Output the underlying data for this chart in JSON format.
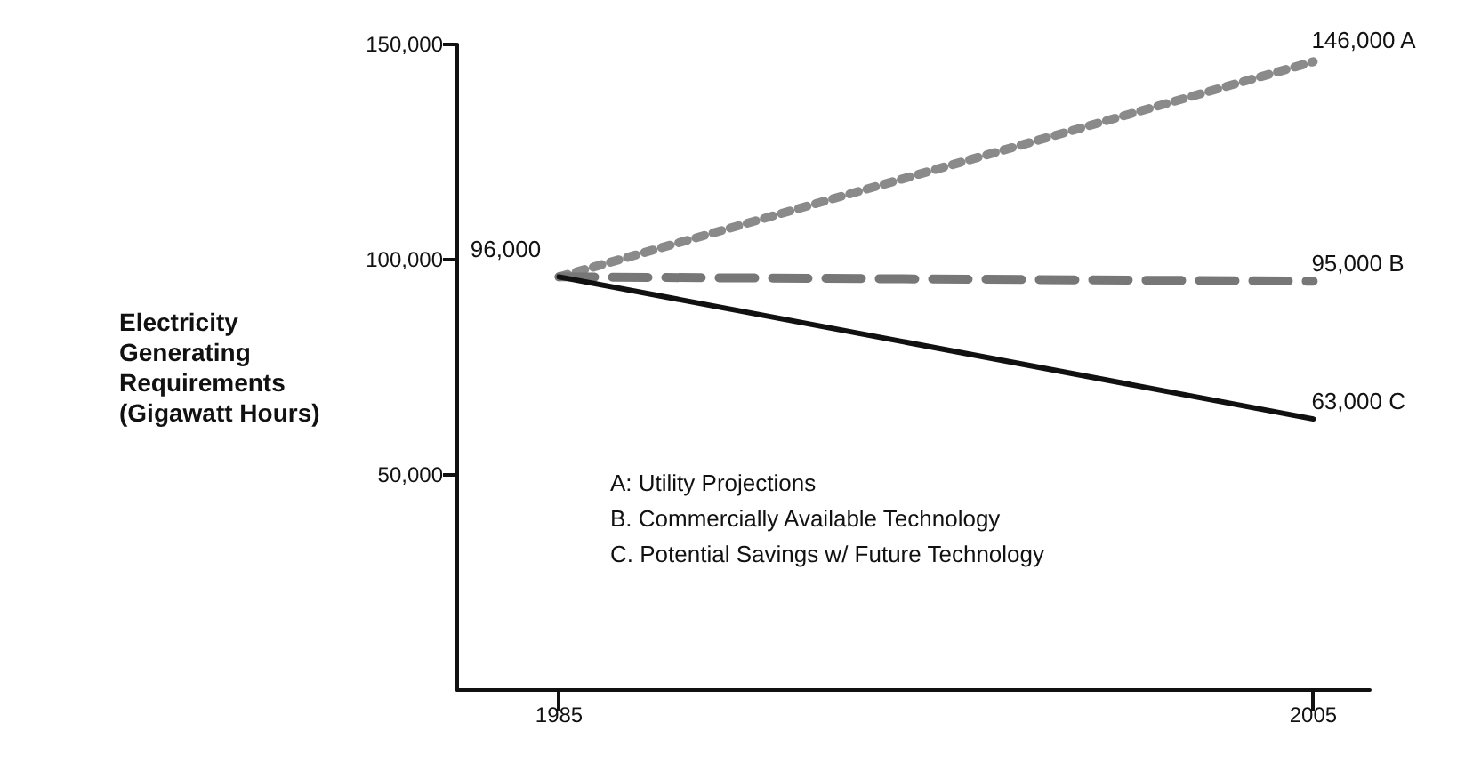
{
  "chart_data": {
    "type": "line",
    "ylabel": "Electricity Generating Requirements (Gigawatt Hours)",
    "x": [
      1985,
      2005
    ],
    "xlim": [
      1982.3,
      2006.5
    ],
    "xticks": [
      1985,
      2005
    ],
    "ylim": [
      0,
      150000
    ],
    "yticks": [
      {
        "value": 50000,
        "label": "50,000"
      },
      {
        "value": 100000,
        "label": "100,000"
      },
      {
        "value": 150000,
        "label": "150,000"
      }
    ],
    "series": [
      {
        "color": "#8a8a8a",
        "line_style": "dotted",
        "values": [
          96000,
          146000
        ],
        "value_labels": [
          "96,000",
          "146,000 A"
        ]
      },
      {
        "color": "#777777",
        "line_style": "dashed",
        "values": [
          96000,
          95000
        ],
        "value_labels": [
          null,
          "95,000 B"
        ]
      },
      {
        "color": "#111111",
        "line_style": "solid",
        "values": [
          96000,
          63000
        ],
        "value_labels": [
          null,
          "63,000 C"
        ]
      }
    ],
    "annotations": [
      "A: Utility Projections",
      "B. Commercially Available Technology",
      "C. Potential Savings w/ Future Technology"
    ],
    "grid": false,
    "marker": "none"
  }
}
